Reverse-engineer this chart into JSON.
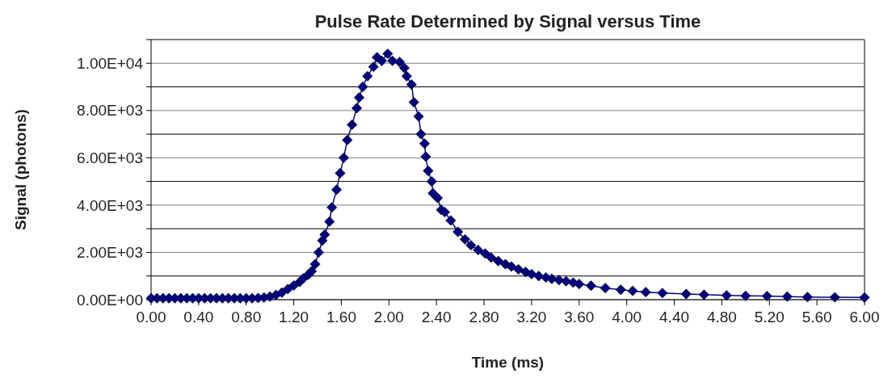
{
  "chart_data": {
    "type": "line",
    "title": "Pulse Rate Determined by Signal versus Time",
    "xlabel": "Time (ms)",
    "ylabel": "Signal (photons)",
    "series": [
      {
        "color": "#000080",
        "x": [
          0,
          0.05,
          0.1,
          0.15,
          0.2,
          0.25,
          0.3,
          0.35,
          0.4,
          0.45,
          0.5,
          0.55,
          0.6,
          0.65,
          0.7,
          0.75,
          0.8,
          0.85,
          0.9,
          0.95,
          1.0,
          1.05,
          1.1,
          1.15,
          1.2,
          1.25,
          1.28,
          1.32,
          1.35,
          1.38,
          1.41,
          1.44,
          1.46,
          1.5,
          1.52,
          1.56,
          1.59,
          1.62,
          1.65,
          1.69,
          1.73,
          1.75,
          1.78,
          1.82,
          1.87,
          1.9,
          1.94,
          1.99,
          2.03,
          2.09,
          2.13,
          2.15,
          2.19,
          2.21,
          2.25,
          2.27,
          2.3,
          2.31,
          2.33,
          2.36,
          2.37,
          2.41,
          2.44,
          2.47,
          2.52,
          2.58,
          2.64,
          2.69,
          2.75,
          2.81,
          2.86,
          2.92,
          2.98,
          3.03,
          3.09,
          3.15,
          3.2,
          3.26,
          3.32,
          3.37,
          3.43,
          3.49,
          3.55,
          3.6,
          3.7,
          3.82,
          3.95,
          4.05,
          4.16,
          4.3,
          4.5,
          4.65,
          4.84,
          5.0,
          5.18,
          5.35,
          5.52,
          5.75,
          6.0
        ],
        "values": [
          60,
          60,
          60,
          60,
          60,
          60,
          60,
          60,
          60,
          60,
          60,
          60,
          60,
          60,
          60,
          60,
          60,
          60,
          70,
          90,
          130,
          200,
          300,
          450,
          600,
          750,
          900,
          1050,
          1200,
          1500,
          2000,
          2500,
          2750,
          3300,
          3900,
          4650,
          5350,
          6000,
          6750,
          7400,
          8100,
          8550,
          9000,
          9450,
          9850,
          10250,
          10100,
          10400,
          10100,
          10050,
          9800,
          9450,
          9100,
          8350,
          7750,
          7000,
          6600,
          6050,
          5450,
          5000,
          4500,
          4300,
          3800,
          3700,
          3350,
          2870,
          2550,
          2300,
          2100,
          1950,
          1780,
          1630,
          1500,
          1400,
          1280,
          1170,
          1080,
          1000,
          940,
          880,
          830,
          780,
          720,
          660,
          590,
          490,
          420,
          370,
          320,
          280,
          240,
          210,
          180,
          160,
          150,
          130,
          110,
          100,
          90
        ]
      }
    ],
    "xlim": [
      0,
      6
    ],
    "xticks": [
      {
        "value": 0,
        "label": "0.00"
      },
      {
        "value": 0.4,
        "label": "0.40"
      },
      {
        "value": 0.8,
        "label": "0.80"
      },
      {
        "value": 1.2,
        "label": "1.20"
      },
      {
        "value": 1.6,
        "label": "1.60"
      },
      {
        "value": 2,
        "label": "2.00"
      },
      {
        "value": 2.4,
        "label": "2.40"
      },
      {
        "value": 2.8,
        "label": "2.80"
      },
      {
        "value": 3.2,
        "label": "3.20"
      },
      {
        "value": 3.6,
        "label": "3.60"
      },
      {
        "value": 4,
        "label": "4.00"
      },
      {
        "value": 4.4,
        "label": "4.40"
      },
      {
        "value": 4.8,
        "label": "4.80"
      },
      {
        "value": 5.2,
        "label": "5.20"
      },
      {
        "value": 5.6,
        "label": "5.60"
      },
      {
        "value": 6,
        "label": "6.00"
      }
    ],
    "ylim": [
      0,
      11000
    ],
    "yticks": [
      {
        "value": 0,
        "label": "0.00E+00"
      },
      {
        "value": 1000,
        "label": null
      },
      {
        "value": 2000,
        "label": "2.00E+03"
      },
      {
        "value": 3000,
        "label": null
      },
      {
        "value": 4000,
        "label": "4.00E+03"
      },
      {
        "value": 5000,
        "label": null
      },
      {
        "value": 6000,
        "label": "6.00E+03"
      },
      {
        "value": 7000,
        "label": null
      },
      {
        "value": 8000,
        "label": "8.00E+03"
      },
      {
        "value": 9000,
        "label": null
      },
      {
        "value": 10000,
        "label": "1.00E+04"
      },
      {
        "value": 11000,
        "label": null
      }
    ],
    "grid": "y",
    "marker": "diamond",
    "line_style": "solid"
  }
}
